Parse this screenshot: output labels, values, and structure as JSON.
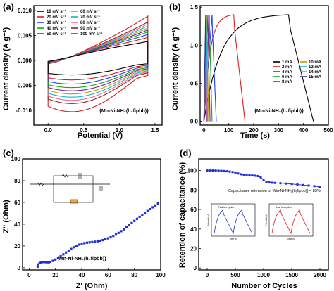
{
  "chart_data": [
    {
      "panel": "(a)",
      "type": "line",
      "xlabel": "Potential (V)",
      "ylabel": "Current density (A g⁻¹)",
      "xlim": [
        -0.2,
        1.6
      ],
      "ylim": [
        -0.013,
        0.011
      ],
      "xticks": [
        "0.0",
        "0.5",
        "1.0",
        "1.5"
      ],
      "yticks": [
        "-0.010",
        "-0.005",
        "0.000",
        "0.005",
        "0.010"
      ],
      "ytick_values": [
        -0.01,
        -0.005,
        0.0,
        0.005,
        0.01
      ],
      "xtick_values": [
        0.0,
        0.5,
        1.0,
        1.5
      ],
      "annotation": "{Mn-Ni-NH₂(h₂fipbb)}",
      "legend_placement": "top-left",
      "series": [
        {
          "name": "10 mV s⁻¹",
          "color": "#000000",
          "ymax": 0.0038,
          "ymin": -0.0032
        },
        {
          "name": "20 mV s⁻¹",
          "color": "#e41a1c",
          "ymax": 0.0046,
          "ymin": -0.0043
        },
        {
          "name": "30 mV s⁻¹",
          "color": "#1f3fff",
          "ymax": 0.0052,
          "ymin": -0.0052
        },
        {
          "name": "40 mV s⁻¹",
          "color": "#17a817",
          "ymax": 0.0057,
          "ymin": -0.006
        },
        {
          "name": "50 mV s⁻¹",
          "color": "#7b1fa2",
          "ymax": 0.0061,
          "ymin": -0.0067
        },
        {
          "name": "60 mV s⁻¹",
          "color": "#c49a00",
          "ymax": 0.0065,
          "ymin": -0.0074
        },
        {
          "name": "70 mV s⁻¹",
          "color": "#00bcd4",
          "ymax": 0.0069,
          "ymin": -0.0081
        },
        {
          "name": "80 mV s⁻¹",
          "color": "#ff5fa2",
          "ymax": 0.0073,
          "ymin": -0.0088
        },
        {
          "name": "90 mV s⁻¹",
          "color": "#8b2a1a",
          "ymax": 0.0077,
          "ymin": -0.0095
        },
        {
          "name": "100 mV s⁻¹",
          "color": "#cc2222",
          "ymax": 0.0089,
          "ymin": -0.0113
        }
      ]
    },
    {
      "panel": "(b)",
      "type": "line",
      "xlabel": "Time (s)",
      "ylabel": "Current density (A g⁻¹)",
      "xlim": [
        -15,
        500
      ],
      "ylim": [
        -0.05,
        1.52
      ],
      "xticks": [
        "0",
        "100",
        "200",
        "300",
        "400",
        "500"
      ],
      "xtick_values": [
        0,
        100,
        200,
        300,
        400,
        500
      ],
      "yticks": [
        "0.0",
        "0.5",
        "1.0",
        "1.5"
      ],
      "ytick_values": [
        0.0,
        0.5,
        1.0,
        1.5
      ],
      "annotation": "{Mn-Ni-NH₂(h₂fipbb)}",
      "legend_placement": "center-right",
      "series": [
        {
          "name": "1 mA",
          "color": "#000000",
          "tc": 340,
          "td": 440
        },
        {
          "name": "2 mA",
          "color": "#e41a1c",
          "tc": 120,
          "td": 165
        },
        {
          "name": "4 mA",
          "color": "#1f3fff",
          "tc": 33,
          "td": 50
        },
        {
          "name": "6 mA",
          "color": "#17a817",
          "tc": 22,
          "td": 33
        },
        {
          "name": "8 mA",
          "color": "#7b1fa2",
          "tc": 16,
          "td": 25
        },
        {
          "name": "10 mA",
          "color": "#c49a00",
          "tc": 12,
          "td": 19
        },
        {
          "name": "12 mA",
          "color": "#00bcd4",
          "tc": 10,
          "td": 15
        },
        {
          "name": "14 mA",
          "color": "#ff5fa2",
          "tc": 8,
          "td": 12
        },
        {
          "name": "15 mA",
          "color": "#333399",
          "tc": 7,
          "td": 10
        }
      ]
    },
    {
      "panel": "(c)",
      "type": "scatter",
      "xlabel": "Z' (Ohm)",
      "ylabel": "Z'' (Ohm)",
      "xlim": [
        -5,
        100
      ],
      "ylim": [
        -2,
        100
      ],
      "xticks": [
        "0",
        "20",
        "40",
        "60",
        "80",
        "100"
      ],
      "xtick_values": [
        0,
        20,
        40,
        60,
        80,
        100
      ],
      "yticks": [
        "0",
        "20",
        "40",
        "60",
        "80",
        "100"
      ],
      "ytick_values": [
        0,
        20,
        40,
        60,
        80,
        100
      ],
      "annotation": "{Mn-Ni-NH₂(h₂fipbb)}",
      "color": "#1f2fd1",
      "x": [
        6.5,
        7,
        8,
        9,
        10,
        11,
        12,
        13,
        14,
        15,
        16,
        18,
        20,
        22,
        24,
        26,
        28,
        30,
        32,
        34,
        36,
        38,
        40,
        42,
        44,
        46,
        48,
        50,
        52,
        54,
        56,
        58,
        60,
        62,
        64,
        66,
        68,
        70,
        72,
        74,
        76,
        78,
        80,
        82,
        84,
        86,
        88,
        90,
        92,
        94,
        96,
        98
      ],
      "y": [
        1,
        3,
        4.2,
        4.9,
        5.2,
        5.3,
        5.2,
        5.1,
        5.0,
        5.1,
        5.4,
        6.3,
        7.5,
        9.0,
        10.6,
        12.3,
        14.0,
        15.7,
        17.3,
        18.8,
        20.1,
        21.2,
        22.0,
        22.6,
        23.0,
        23.3,
        23.6,
        23.9,
        24.3,
        24.8,
        25.4,
        26.1,
        27.0,
        28.0,
        29.2,
        30.5,
        32.0,
        33.6,
        35.3,
        37.1,
        39.0,
        41.0,
        43.0,
        44.9,
        46.8,
        48.6,
        50.4,
        52.1,
        53.8,
        55.5,
        57.2,
        59.0
      ]
    },
    {
      "panel": "(d)",
      "type": "line",
      "xlabel": "Number of Cycles",
      "ylabel": "Retention of capacitance (%)",
      "xlim": [
        -150,
        2150
      ],
      "ylim": [
        -2,
        112
      ],
      "xticks": [
        "0",
        "500",
        "1000",
        "1500",
        "2000"
      ],
      "xtick_values": [
        0,
        500,
        1000,
        1500,
        2000
      ],
      "yticks": [
        "0",
        "20",
        "40",
        "60",
        "80",
        "100"
      ],
      "ytick_values": [
        0,
        20,
        40,
        60,
        80,
        100
      ],
      "annotation": "Capacitance retension of {Mn-Ni-NH₂(h₂fipbb)} = 83%",
      "color": "#1f2fd1",
      "x": [
        0,
        50,
        100,
        150,
        200,
        250,
        300,
        350,
        400,
        450,
        500,
        550,
        600,
        650,
        700,
        750,
        800,
        850,
        900,
        950,
        1000,
        1050,
        1100,
        1150,
        1200,
        1300,
        1400,
        1500,
        1600,
        1700,
        1800,
        1900,
        2000
      ],
      "y": [
        100,
        100,
        100,
        100,
        99.8,
        99.7,
        99.5,
        99.3,
        98.9,
        98.5,
        98,
        97,
        96.2,
        95.8,
        95.5,
        95.3,
        95.0,
        94.7,
        94.3,
        93,
        90.5,
        88.5,
        87.8,
        87.5,
        87.3,
        87.0,
        86.6,
        86.2,
        85.7,
        85.1,
        84.6,
        84.0,
        83.2
      ],
      "insets": [
        {
          "title": "First two cycles",
          "xlabel": "Time (s)",
          "ylabel": "Potential (V)",
          "color": "#1f2fd1"
        },
        {
          "title": "Last two cycles",
          "xlabel": "Time (s)",
          "ylabel": "Potential (V)",
          "color": "#e41a1c"
        }
      ]
    }
  ]
}
